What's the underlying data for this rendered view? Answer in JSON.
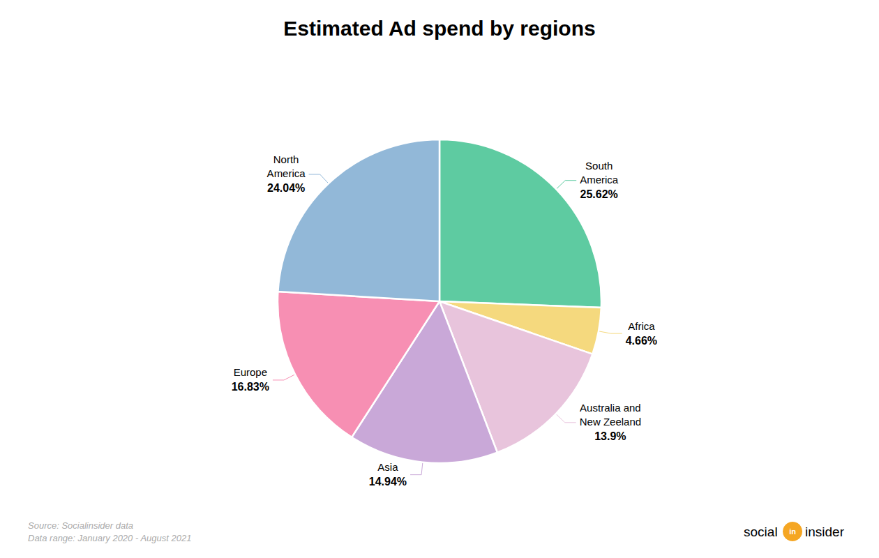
{
  "chart_data": {
    "type": "pie",
    "title": "Estimated Ad spend by regions",
    "categories": [
      "South\nAmerica",
      "Africa",
      "Australia and\nNew Zeeland",
      "Asia",
      "Europe",
      "North\nAmerica"
    ],
    "values": [
      25.62,
      4.66,
      13.9,
      14.94,
      16.83,
      24.04
    ],
    "value_labels": [
      "25.62%",
      "4.66%",
      "13.9%",
      "14.94%",
      "16.83%",
      "24.04%"
    ],
    "colors": [
      "#5ECBA1",
      "#F5D97E",
      "#E8C4DC",
      "#C9A8D8",
      "#F78FB3",
      "#92B8D8"
    ],
    "annotations": [
      "Source: Socialinsider data\nData range: January 2020 - August 2021",
      "social",
      "in",
      "insider"
    ],
    "legend": false
  }
}
